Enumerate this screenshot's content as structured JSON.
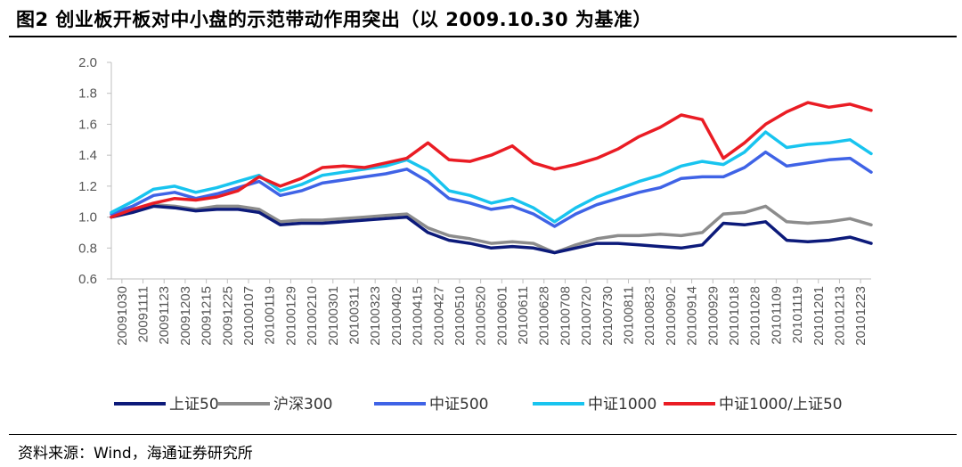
{
  "figure": {
    "title": "图2  创业板开板对中小盘的示范带动作用突出（以 2009.10.30 为基准）",
    "source": "资料来源：Wind，海通证券研究所"
  },
  "chart_data": {
    "type": "line",
    "ylim": [
      0.6,
      2.0
    ],
    "y_ticks": [
      "0.6",
      "0.8",
      "1.0",
      "1.2",
      "1.4",
      "1.6",
      "1.8",
      "2.0"
    ],
    "x_tick_labels": [
      "20091030",
      "20091111",
      "20091123",
      "20091203",
      "20091215",
      "20091225",
      "20100107",
      "20100119",
      "20100129",
      "20100210",
      "20100301",
      "20100311",
      "20100323",
      "20100402",
      "20100415",
      "20100427",
      "20100510",
      "20100520",
      "20100601",
      "20100611",
      "20100628",
      "20100708",
      "20100720",
      "20100730",
      "20100811",
      "20100823",
      "20100902",
      "20100914",
      "20100929",
      "20101018",
      "20101028",
      "20101109",
      "20101119",
      "20101201",
      "20101213",
      "20101223"
    ],
    "grid": false,
    "legend_position": "bottom",
    "series": [
      {
        "name": "上证50",
        "color": "#0c1a7a",
        "values": [
          1.0,
          1.03,
          1.07,
          1.06,
          1.04,
          1.05,
          1.05,
          1.03,
          0.95,
          0.96,
          0.96,
          0.97,
          0.98,
          0.99,
          1.0,
          0.9,
          0.85,
          0.83,
          0.8,
          0.81,
          0.8,
          0.77,
          0.8,
          0.83,
          0.83,
          0.82,
          0.81,
          0.8,
          0.82,
          0.96,
          0.95,
          0.97,
          0.85,
          0.84,
          0.85,
          0.87,
          0.83
        ]
      },
      {
        "name": "沪深300",
        "color": "#8c8c8c",
        "values": [
          1.0,
          1.04,
          1.08,
          1.07,
          1.05,
          1.07,
          1.07,
          1.05,
          0.97,
          0.98,
          0.98,
          0.99,
          1.0,
          1.01,
          1.02,
          0.93,
          0.88,
          0.86,
          0.83,
          0.84,
          0.83,
          0.77,
          0.82,
          0.86,
          0.88,
          0.88,
          0.89,
          0.88,
          0.9,
          1.02,
          1.03,
          1.07,
          0.97,
          0.96,
          0.97,
          0.99,
          0.95
        ]
      },
      {
        "name": "中证500",
        "color": "#3f63e6",
        "values": [
          1.02,
          1.07,
          1.14,
          1.16,
          1.12,
          1.15,
          1.19,
          1.23,
          1.14,
          1.17,
          1.22,
          1.24,
          1.26,
          1.28,
          1.31,
          1.23,
          1.12,
          1.09,
          1.05,
          1.07,
          1.02,
          0.94,
          1.02,
          1.08,
          1.12,
          1.16,
          1.19,
          1.25,
          1.26,
          1.26,
          1.32,
          1.42,
          1.33,
          1.35,
          1.37,
          1.38,
          1.29
        ]
      },
      {
        "name": "中证1000",
        "color": "#18c4ef",
        "values": [
          1.03,
          1.1,
          1.18,
          1.2,
          1.16,
          1.19,
          1.23,
          1.27,
          1.17,
          1.21,
          1.27,
          1.29,
          1.31,
          1.33,
          1.37,
          1.3,
          1.17,
          1.14,
          1.09,
          1.12,
          1.06,
          0.97,
          1.06,
          1.13,
          1.18,
          1.23,
          1.27,
          1.33,
          1.36,
          1.34,
          1.42,
          1.55,
          1.45,
          1.47,
          1.48,
          1.5,
          1.41
        ]
      },
      {
        "name": "中证1000/上证50",
        "color": "#ea1c24",
        "values": [
          1.0,
          1.05,
          1.09,
          1.12,
          1.11,
          1.13,
          1.17,
          1.26,
          1.2,
          1.25,
          1.32,
          1.33,
          1.32,
          1.35,
          1.38,
          1.48,
          1.37,
          1.36,
          1.4,
          1.46,
          1.35,
          1.31,
          1.34,
          1.38,
          1.44,
          1.52,
          1.58,
          1.66,
          1.63,
          1.38,
          1.48,
          1.6,
          1.68,
          1.74,
          1.71,
          1.73,
          1.69
        ]
      }
    ]
  },
  "colors": {
    "axis": "#bfbfbf",
    "tick_text": "#555555"
  }
}
